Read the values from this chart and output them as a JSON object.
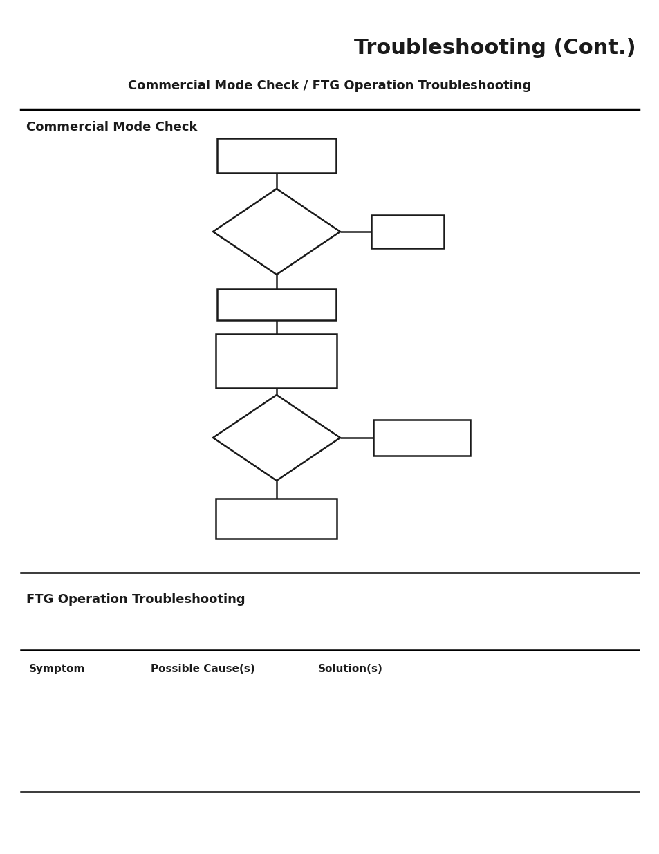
{
  "title": "Troubleshooting (Cont.)",
  "subtitle": "Commercial Mode Check / FTG Operation Troubleshooting",
  "section1_title": "Commercial Mode Check",
  "section2_title": "FTG Operation Troubleshooting",
  "table_headers": [
    "Symptom",
    "Possible Cause(s)",
    "Solution(s)"
  ],
  "bg_color": "#ffffff",
  "line_color": "#1a1a1a",
  "text_color": "#1a1a1a",
  "title_fontsize": 22,
  "subtitle_fontsize": 13,
  "section_fontsize": 13,
  "header_fontsize": 11
}
